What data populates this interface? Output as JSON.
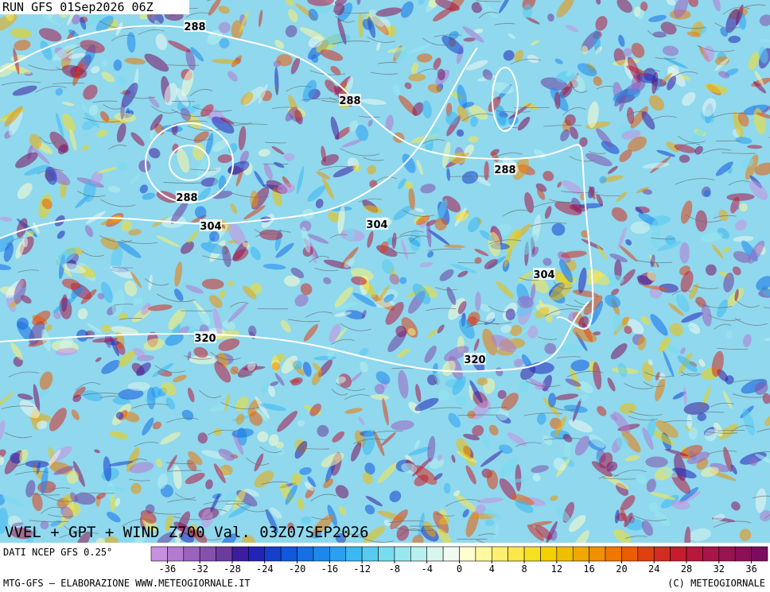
{
  "header": {
    "run": "RUN GFS 01Sep2026 06Z"
  },
  "contour_labels": [
    "288",
    "288",
    "288",
    "288",
    "304",
    "304",
    "304",
    "320",
    "320"
  ],
  "title": "VVEL + GPT + WIND Z700 Val. 03Z07SEP2026",
  "colorbar": {
    "source": "DATI NCEP GFS 0.25°",
    "colors": [
      "#c890e0",
      "#b47ad0",
      "#9c62c0",
      "#8450ac",
      "#6c3c9c",
      "#3c1ca0",
      "#2024b8",
      "#1440cc",
      "#1058dc",
      "#1470e4",
      "#1c88ec",
      "#2aa0f0",
      "#3cb8f0",
      "#58caf0",
      "#78dcf0",
      "#98e8f0",
      "#b8f0ee",
      "#d8f6ee",
      "#f0faf0",
      "#ffffd0",
      "#fff8a0",
      "#fff070",
      "#fde848",
      "#f8e020",
      "#f4d000",
      "#f0c000",
      "#f0a800",
      "#f09000",
      "#f07800",
      "#ec5c00",
      "#e04010",
      "#d42c20",
      "#c81c2c",
      "#b8183c",
      "#a81448",
      "#981450",
      "#8c1058",
      "#7c0c60"
    ],
    "ticks": [
      -36,
      -32,
      -28,
      -24,
      -20,
      -16,
      -12,
      -8,
      -4,
      0,
      4,
      8,
      12,
      16,
      20,
      24,
      28,
      32,
      36
    ]
  },
  "footer": {
    "left": "MTG-GFS — ELABORAZIONE WWW.METEOGIORNALE.IT",
    "right": "(C) METEOGIORNALE"
  }
}
